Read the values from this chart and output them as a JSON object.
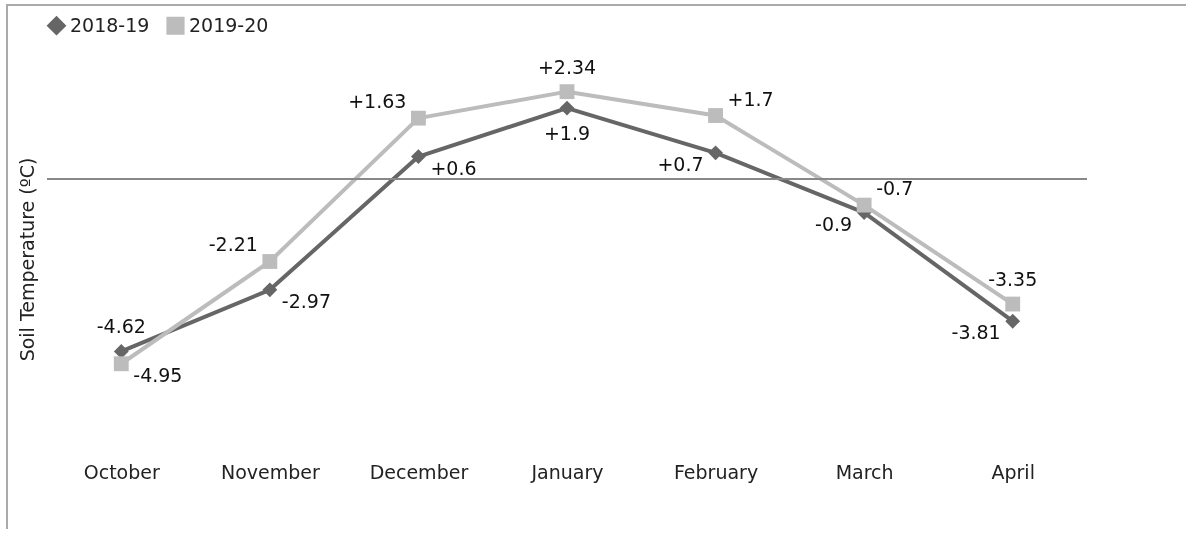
{
  "chart_data": {
    "type": "line",
    "ylabel": "Soil Temperature (ºC)",
    "legend": "top",
    "categories": [
      "October",
      "November",
      "December",
      "January",
      "February",
      "March",
      "April"
    ],
    "series": [
      {
        "name": "2018-19",
        "color": "#666666",
        "marker": "diamond",
        "values": [
          -4.62,
          -2.97,
          0.6,
          1.9,
          0.7,
          -0.9,
          -3.81
        ],
        "value_labels": [
          "-4.62",
          "-2.97",
          "+0.6",
          "+1.9",
          "+0.7",
          "-0.9",
          "-3.81"
        ]
      },
      {
        "name": "2019-20",
        "color": "#bcbcbc",
        "marker": "square",
        "values": [
          -4.95,
          -2.21,
          1.63,
          2.34,
          1.7,
          -0.7,
          -3.35
        ],
        "value_labels": [
          "-4.95",
          "-2.21",
          "+1.63",
          "+2.34",
          "+1.7",
          "-0.7",
          "-3.35"
        ]
      }
    ]
  }
}
